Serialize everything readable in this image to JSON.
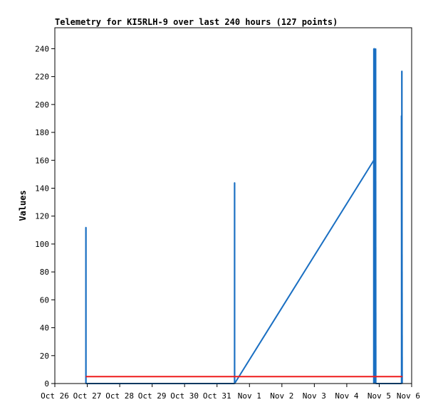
{
  "chart_data": {
    "type": "line",
    "title": "Telemetry for KI5RLH-9 over last 240 hours (127 points)",
    "xlabel": "",
    "ylabel": "Values",
    "xlim": [
      "Oct 26",
      "Nov 6"
    ],
    "ylim": [
      0,
      255
    ],
    "x_ticks": [
      "Oct 26",
      "Oct 27",
      "Oct 28",
      "Oct 29",
      "Oct 30",
      "Oct 31",
      "Nov 1",
      "Nov 2",
      "Nov 3",
      "Nov 4",
      "Nov 5",
      "Nov 6"
    ],
    "y_ticks": [
      0,
      20,
      40,
      60,
      80,
      100,
      120,
      140,
      160,
      180,
      200,
      220,
      240
    ],
    "grid": false,
    "legend": "none",
    "series": [
      {
        "color": "#1a6fc2",
        "points": [
          [
            "2023-10-26T23:00",
            0
          ],
          [
            "2023-10-26T23:00",
            112
          ],
          [
            "2023-10-26T23:00",
            0
          ],
          [
            "2023-10-31T13:00",
            0
          ],
          [
            "2023-10-31T13:00",
            144
          ],
          [
            "2023-10-31T13:00",
            0
          ],
          [
            "2023-11-04T20:00",
            160
          ],
          [
            "2023-11-04T20:00",
            0
          ],
          [
            "2023-11-04T20:00",
            240
          ],
          [
            "2023-11-04T20:30",
            240
          ],
          [
            "2023-11-04T21:00",
            0
          ],
          [
            "2023-11-04T21:00",
            112
          ],
          [
            "2023-11-04T21:20",
            0
          ],
          [
            "2023-11-04T21:20",
            240
          ],
          [
            "2023-11-04T21:30",
            0
          ],
          [
            "2023-11-05T16:30",
            0
          ],
          [
            "2023-11-05T16:30",
            192
          ],
          [
            "2023-11-05T16:45",
            0
          ],
          [
            "2023-11-05T16:45",
            224
          ],
          [
            "2023-11-05T17:00",
            0
          ]
        ]
      },
      {
        "color": "#ee1c1c",
        "points": [
          [
            "2023-10-26T23:00",
            5
          ],
          [
            "2023-11-05T17:00",
            5
          ]
        ]
      }
    ]
  }
}
